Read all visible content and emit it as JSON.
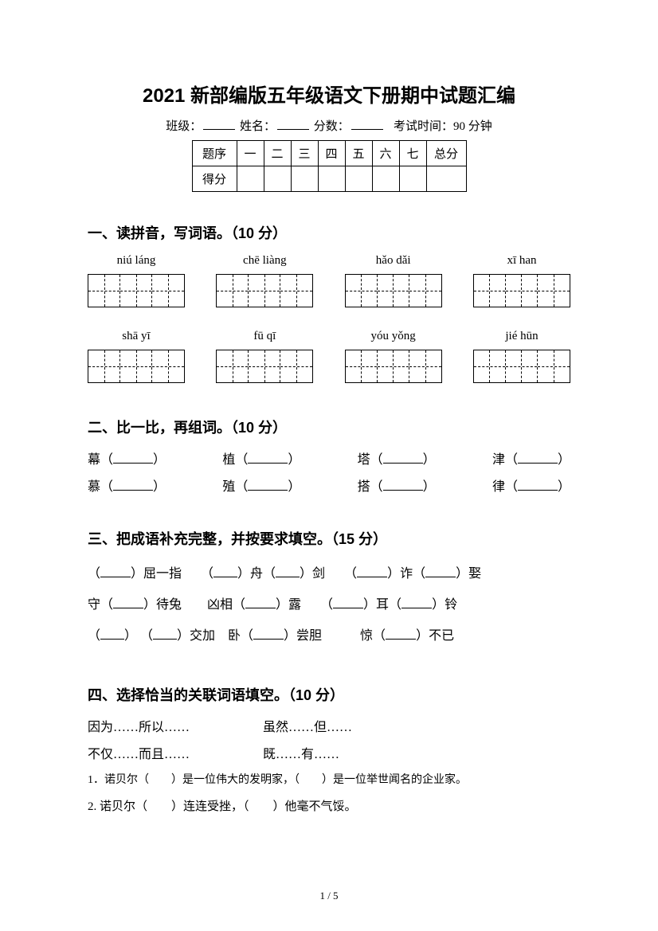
{
  "title": "2021 新部编版五年级语文下册期中试题汇编",
  "header": {
    "class_label": "班级：",
    "name_label": "姓名：",
    "score_label": "分数：",
    "exam_time_label": "考试时间：90 分钟"
  },
  "score_table": {
    "row_labels": [
      "题序",
      "得分"
    ],
    "columns": [
      "一",
      "二",
      "三",
      "四",
      "五",
      "六",
      "七",
      "总分"
    ]
  },
  "section1": {
    "heading": "一、读拼音，写词语。（10 分）",
    "row1": [
      {
        "pinyin": "niú láng",
        "boxes": 2
      },
      {
        "pinyin": "chē liàng",
        "boxes": 2
      },
      {
        "pinyin": "hǎo dǎi",
        "boxes": 2
      },
      {
        "pinyin": "xī han",
        "boxes": 2
      }
    ],
    "row2": [
      {
        "pinyin": "shā   yī",
        "boxes": 2
      },
      {
        "pinyin": "fū   qī",
        "boxes": 2
      },
      {
        "pinyin": "yóu yǒng",
        "boxes": 2
      },
      {
        "pinyin": "jié hūn",
        "boxes": 2
      }
    ]
  },
  "section2": {
    "heading": "二、比一比，再组词。（10 分）",
    "pairs": [
      [
        "幕",
        "慕"
      ],
      [
        "植",
        "殖"
      ],
      [
        "塔",
        "搭"
      ],
      [
        "津",
        "律"
      ]
    ]
  },
  "section3": {
    "heading": "三、把成语补充完整，并按要求填空。（15 分）",
    "lines": [
      [
        {
          "type": "paren-blank",
          "w": "s"
        },
        {
          "type": "text",
          "v": "屈一指　　"
        },
        {
          "type": "paren-blank",
          "w": "xs"
        },
        {
          "type": "text",
          "v": "舟"
        },
        {
          "type": "paren-blank",
          "w": "xs"
        },
        {
          "type": "text",
          "v": "剑　　"
        },
        {
          "type": "paren-blank",
          "w": "s"
        },
        {
          "type": "text",
          "v": "诈"
        },
        {
          "type": "paren-blank",
          "w": "s"
        },
        {
          "type": "text",
          "v": "娶"
        }
      ],
      [
        {
          "type": "text",
          "v": "守"
        },
        {
          "type": "paren-blank",
          "w": "s"
        },
        {
          "type": "text",
          "v": "待兔　　凶相"
        },
        {
          "type": "paren-blank",
          "w": "s"
        },
        {
          "type": "text",
          "v": "露　　"
        },
        {
          "type": "paren-blank",
          "w": "s"
        },
        {
          "type": "text",
          "v": "耳"
        },
        {
          "type": "paren-blank",
          "w": "s"
        },
        {
          "type": "text",
          "v": "铃"
        }
      ],
      [
        {
          "type": "paren-blank",
          "w": "xs"
        },
        {
          "type": "text",
          "v": " "
        },
        {
          "type": "paren-blank",
          "w": "xs"
        },
        {
          "type": "text",
          "v": "交加　卧"
        },
        {
          "type": "paren-blank",
          "w": "s"
        },
        {
          "type": "text",
          "v": "尝胆　　　惊"
        },
        {
          "type": "paren-blank",
          "w": "s"
        },
        {
          "type": "text",
          "v": "不已"
        }
      ]
    ]
  },
  "section4": {
    "heading": "四、选择恰当的关联词语填空。（10 分）",
    "options": [
      [
        "因为……所以……",
        "虽然……但……"
      ],
      [
        "不仅……而且……",
        "既……有……"
      ]
    ],
    "sentences": [
      "1．诺贝尔（　　）是一位伟大的发明家，（　　）是一位举世闻名的企业家。",
      "2. 诺贝尔（　　）连连受挫，（　　）他毫不气馁。"
    ]
  },
  "page_number": "1 / 5"
}
